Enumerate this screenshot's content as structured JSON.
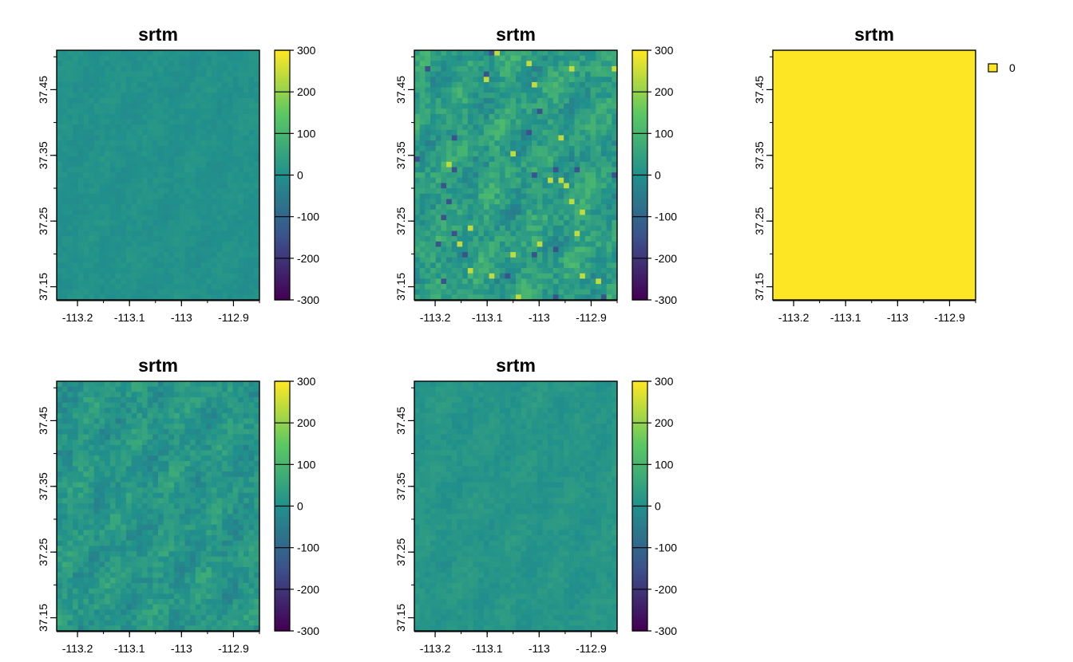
{
  "chart_data": [
    {
      "type": "heatmap",
      "title": "srtm",
      "xlabel": "",
      "ylabel": "",
      "x_ticks": [
        "-113.2",
        "-113.1",
        "-113",
        "-112.9"
      ],
      "y_ticks": [
        "37.15",
        "37.25",
        "37.35",
        "37.45"
      ],
      "xlim": [
        -113.24,
        -112.85
      ],
      "ylim": [
        37.13,
        37.51
      ],
      "legend": {
        "type": "continuous",
        "range": [
          -300,
          300
        ],
        "ticks": [
          "300",
          "200",
          "100",
          "0",
          "-100",
          "-200",
          "-300"
        ]
      },
      "colormap": [
        "#440154",
        "#3b528b",
        "#21908c",
        "#5dc863",
        "#fde725"
      ],
      "grid": {
        "cols": 38,
        "rows": 47
      },
      "values_description": "low-variance field centered near 0 (approx -30 to 40)",
      "value_range": [
        -30,
        40
      ]
    },
    {
      "type": "heatmap",
      "title": "srtm",
      "xlabel": "",
      "ylabel": "",
      "x_ticks": [
        "-113.2",
        "-113.1",
        "-113",
        "-112.9"
      ],
      "y_ticks": [
        "37.15",
        "37.25",
        "37.35",
        "37.45"
      ],
      "xlim": [
        -113.24,
        -112.85
      ],
      "ylim": [
        37.13,
        37.51
      ],
      "legend": {
        "type": "continuous",
        "range": [
          -300,
          300
        ],
        "ticks": [
          "300",
          "200",
          "100",
          "0",
          "-100",
          "-200",
          "-300"
        ]
      },
      "colormap": [
        "#440154",
        "#3b528b",
        "#21908c",
        "#5dc863",
        "#fde725"
      ],
      "grid": {
        "cols": 38,
        "rows": 47
      },
      "value_range": [
        -200,
        270
      ]
    },
    {
      "type": "heatmap",
      "title": "srtm",
      "xlabel": "",
      "ylabel": "",
      "x_ticks": [
        "-113.2",
        "-113.1",
        "-113",
        "-112.9"
      ],
      "y_ticks": [
        "37.15",
        "37.25",
        "37.35",
        "37.45"
      ],
      "xlim": [
        -113.24,
        -112.85
      ],
      "ylim": [
        37.13,
        37.51
      ],
      "legend": {
        "type": "categorical",
        "entries": [
          {
            "label": "0",
            "color": "#fde725"
          }
        ]
      },
      "fill_color": "#fde725",
      "value": 0
    },
    {
      "type": "heatmap",
      "title": "srtm",
      "xlabel": "",
      "ylabel": "",
      "x_ticks": [
        "-113.2",
        "-113.1",
        "-113",
        "-112.9"
      ],
      "y_ticks": [
        "37.15",
        "37.25",
        "37.35",
        "37.45"
      ],
      "xlim": [
        -113.24,
        -112.85
      ],
      "ylim": [
        37.13,
        37.51
      ],
      "legend": {
        "type": "continuous",
        "range": [
          -300,
          300
        ],
        "ticks": [
          "300",
          "200",
          "100",
          "0",
          "-100",
          "-200",
          "-300"
        ]
      },
      "colormap": [
        "#440154",
        "#3b528b",
        "#21908c",
        "#5dc863",
        "#fde725"
      ],
      "grid": {
        "cols": 38,
        "rows": 47
      },
      "value_range": [
        -90,
        120
      ]
    },
    {
      "type": "heatmap",
      "title": "srtm",
      "xlabel": "",
      "ylabel": "",
      "x_ticks": [
        "-113.2",
        "-113.1",
        "-113",
        "-112.9"
      ],
      "y_ticks": [
        "37.15",
        "37.25",
        "37.35",
        "37.45"
      ],
      "xlim": [
        -113.24,
        -112.85
      ],
      "ylim": [
        37.13,
        37.51
      ],
      "legend": {
        "type": "continuous",
        "range": [
          -300,
          300
        ],
        "ticks": [
          "300",
          "200",
          "100",
          "0",
          "-100",
          "-200",
          "-300"
        ]
      },
      "colormap": [
        "#440154",
        "#3b528b",
        "#21908c",
        "#5dc863",
        "#fde725"
      ],
      "grid": {
        "cols": 38,
        "rows": 47
      },
      "value_range": [
        -30,
        60
      ]
    }
  ]
}
